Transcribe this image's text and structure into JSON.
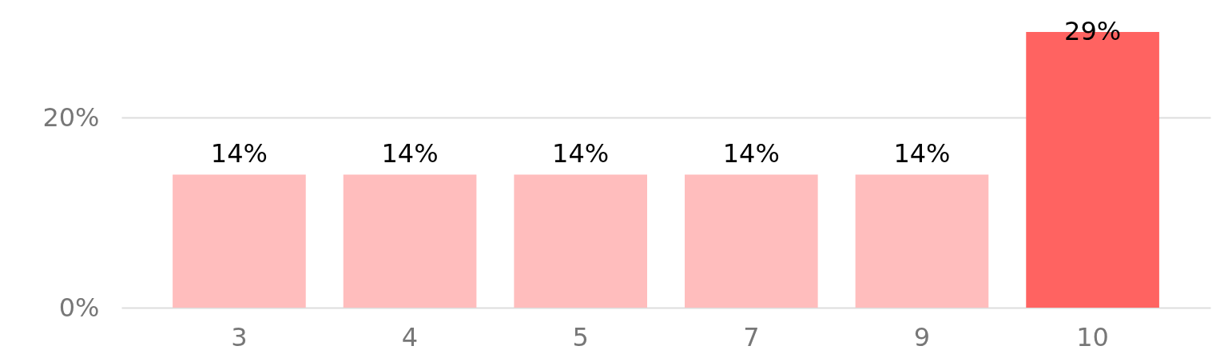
{
  "chart_data": {
    "type": "bar",
    "categories": [
      "3",
      "4",
      "5",
      "7",
      "9",
      "10"
    ],
    "values": [
      14,
      14,
      14,
      14,
      14,
      29
    ],
    "value_labels": [
      "14%",
      "14%",
      "14%",
      "14%",
      "14%",
      "29%"
    ],
    "colors": [
      "#ffbdbd",
      "#ffbdbd",
      "#ffbdbd",
      "#ffbdbd",
      "#ffbdbd",
      "#ff6361"
    ],
    "ylim": [
      0,
      29
    ],
    "yticks": [
      {
        "value": 0,
        "label": "0%"
      },
      {
        "value": 20,
        "label": "20%"
      }
    ],
    "grid": "y"
  }
}
